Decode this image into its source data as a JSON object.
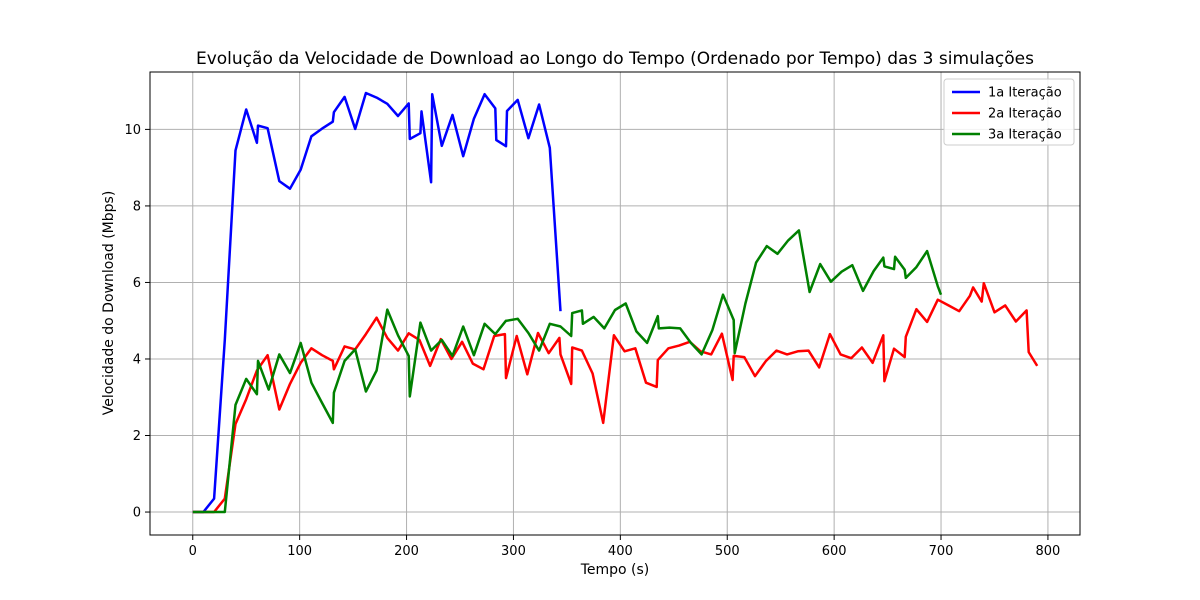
{
  "chart_data": {
    "type": "line",
    "title": "Evolução da Velocidade de Download ao Longo do Tempo (Ordenado por Tempo) das 3 simulações",
    "xlabel": "Tempo (s)",
    "ylabel": "Velocidade do Download (Mbps)",
    "xlim": [
      -40,
      830
    ],
    "ylim": [
      -0.6,
      11.5
    ],
    "xticks": [
      0,
      100,
      200,
      300,
      400,
      500,
      600,
      700,
      800
    ],
    "yticks": [
      0,
      2,
      4,
      6,
      8,
      10
    ],
    "grid": true,
    "legend_position": "top-right",
    "series": [
      {
        "name": "1a Iteração",
        "color": "#0000ff",
        "x": [
          0,
          10,
          20,
          30,
          40,
          50,
          60,
          61,
          70,
          81,
          91,
          101,
          111,
          121,
          131,
          132,
          142,
          152,
          162,
          172,
          182,
          192,
          202,
          203,
          213,
          214,
          223,
          224,
          233,
          243,
          253,
          263,
          273,
          283,
          284,
          293,
          294,
          304,
          314,
          324,
          334,
          344
        ],
        "y": [
          0,
          0,
          0.35,
          4.5,
          9.45,
          10.52,
          9.65,
          10.1,
          10.03,
          8.65,
          8.45,
          8.95,
          9.82,
          10.02,
          10.2,
          10.45,
          10.85,
          10.01,
          10.95,
          10.83,
          10.67,
          10.35,
          10.68,
          9.75,
          9.9,
          10.47,
          8.62,
          10.92,
          9.57,
          10.38,
          9.3,
          10.28,
          10.92,
          10.55,
          9.72,
          9.56,
          10.48,
          10.77,
          9.77,
          10.65,
          9.52,
          5.25
        ]
      },
      {
        "name": "2a Iteração",
        "color": "#ff0000",
        "x": [
          0,
          10,
          20,
          30,
          40,
          50,
          60,
          70,
          81,
          91,
          101,
          111,
          121,
          131,
          132,
          142,
          152,
          162,
          172,
          182,
          192,
          202,
          212,
          222,
          232,
          242,
          252,
          262,
          272,
          282,
          292,
          293,
          303,
          313,
          323,
          333,
          343,
          344,
          354,
          355,
          364,
          374,
          384,
          394,
          404,
          414,
          424,
          434,
          435,
          445,
          455,
          465,
          475,
          485,
          495,
          505,
          506,
          516,
          526,
          536,
          546,
          556,
          566,
          576,
          586,
          596,
          606,
          616,
          626,
          636,
          646,
          647,
          656,
          666,
          667,
          677,
          687,
          697,
          707,
          717,
          727,
          730,
          738,
          740,
          750,
          760,
          770,
          780,
          782,
          790
        ],
        "y": [
          0,
          0,
          0,
          0.35,
          2.3,
          2.95,
          3.7,
          4.1,
          2.68,
          3.35,
          3.9,
          4.28,
          4.1,
          3.95,
          3.73,
          4.33,
          4.25,
          4.65,
          5.08,
          4.55,
          4.22,
          4.67,
          4.5,
          3.82,
          4.52,
          4.0,
          4.45,
          3.88,
          3.73,
          4.6,
          4.65,
          3.5,
          4.6,
          3.6,
          4.68,
          4.15,
          4.55,
          4.12,
          3.35,
          4.3,
          4.22,
          3.62,
          2.33,
          4.62,
          4.2,
          4.28,
          3.38,
          3.27,
          3.97,
          4.28,
          4.35,
          4.45,
          4.2,
          4.12,
          4.66,
          3.45,
          4.08,
          4.05,
          3.55,
          3.94,
          4.22,
          4.12,
          4.2,
          4.22,
          3.78,
          4.65,
          4.12,
          4.02,
          4.3,
          3.9,
          4.62,
          3.42,
          4.27,
          4.05,
          4.58,
          5.3,
          4.97,
          5.55,
          5.4,
          5.25,
          5.65,
          5.87,
          5.5,
          5.98,
          5.22,
          5.4,
          4.98,
          5.27,
          4.18,
          3.82
        ]
      },
      {
        "name": "3a Iteração",
        "color": "#008000",
        "x": [
          0,
          10,
          20,
          30,
          40,
          50,
          60,
          61,
          71,
          81,
          91,
          101,
          111,
          121,
          131,
          132,
          142,
          152,
          162,
          172,
          182,
          192,
          202,
          203,
          213,
          223,
          233,
          243,
          253,
          263,
          273,
          283,
          293,
          294,
          304,
          314,
          324,
          334,
          344,
          354,
          355,
          364,
          365,
          375,
          385,
          395,
          405,
          415,
          425,
          435,
          436,
          446,
          456,
          466,
          476,
          486,
          496,
          506,
          507,
          517,
          527,
          537,
          547,
          557,
          567,
          577,
          587,
          597,
          607,
          617,
          627,
          637,
          646,
          647,
          656,
          657,
          666,
          667,
          677,
          687,
          697,
          700
        ],
        "y": [
          0,
          0,
          0,
          0,
          2.8,
          3.48,
          3.08,
          3.95,
          3.2,
          4.12,
          3.63,
          4.42,
          3.38,
          2.85,
          2.33,
          3.12,
          3.95,
          4.25,
          3.15,
          3.7,
          5.29,
          4.62,
          4.08,
          3.02,
          4.95,
          4.22,
          4.5,
          4.08,
          4.85,
          4.1,
          4.92,
          4.65,
          5.0,
          5.0,
          5.05,
          4.68,
          4.22,
          4.92,
          4.85,
          4.6,
          5.2,
          5.27,
          4.92,
          5.1,
          4.8,
          5.28,
          5.45,
          4.72,
          4.42,
          5.12,
          4.8,
          4.82,
          4.8,
          4.42,
          4.12,
          4.75,
          5.68,
          5.02,
          4.15,
          5.45,
          6.52,
          6.95,
          6.75,
          7.1,
          7.36,
          5.75,
          6.48,
          6.02,
          6.28,
          6.45,
          5.78,
          6.3,
          6.65,
          6.42,
          6.35,
          6.67,
          6.33,
          6.12,
          6.4,
          6.82,
          5.9,
          5.68
        ]
      }
    ]
  }
}
